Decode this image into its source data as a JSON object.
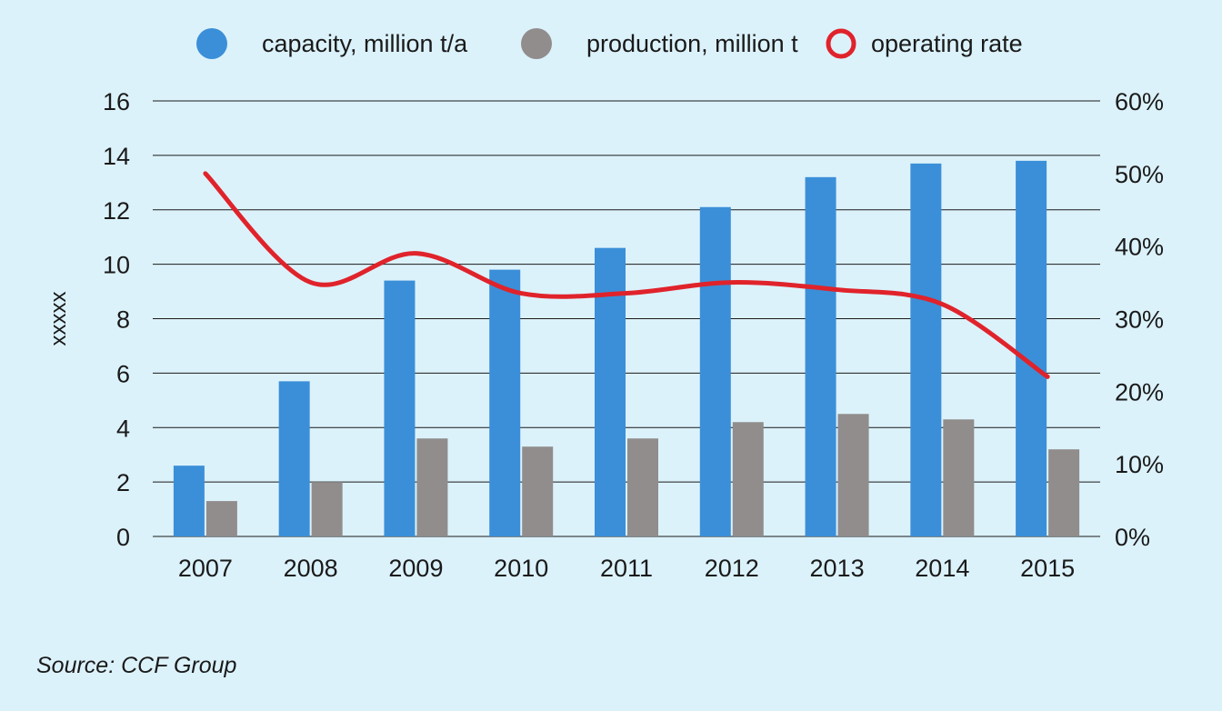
{
  "chart_data": {
    "type": "bar",
    "categories": [
      "2007",
      "2008",
      "2009",
      "2010",
      "2011",
      "2012",
      "2013",
      "2014",
      "2015"
    ],
    "series": [
      {
        "name": "capacity, million t/a",
        "type": "bar",
        "axis": "left",
        "color": "#3b8fd8",
        "values": [
          2.6,
          5.7,
          9.4,
          9.8,
          10.6,
          12.1,
          13.2,
          13.7,
          13.8
        ]
      },
      {
        "name": "production, million t",
        "type": "bar",
        "axis": "left",
        "color": "#918d8d",
        "values": [
          1.3,
          2.0,
          3.6,
          3.3,
          3.6,
          4.2,
          4.5,
          4.3,
          3.2
        ]
      },
      {
        "name": "operating rate",
        "type": "line",
        "axis": "right",
        "color": "#e0232b",
        "values": [
          50,
          35,
          39,
          33.5,
          33.5,
          35,
          34,
          32,
          22
        ]
      }
    ],
    "ylabel": "xxxxx",
    "ylim": [
      0,
      16
    ],
    "yticks": [
      0,
      2,
      4,
      6,
      8,
      10,
      12,
      14,
      16
    ],
    "y2lim": [
      0,
      60
    ],
    "y2ticks": [
      "0%",
      "10%",
      "20%",
      "30%",
      "40%",
      "50%",
      "60%"
    ],
    "grid": true,
    "legend_position": "top"
  },
  "source": "Source: CCF Group"
}
